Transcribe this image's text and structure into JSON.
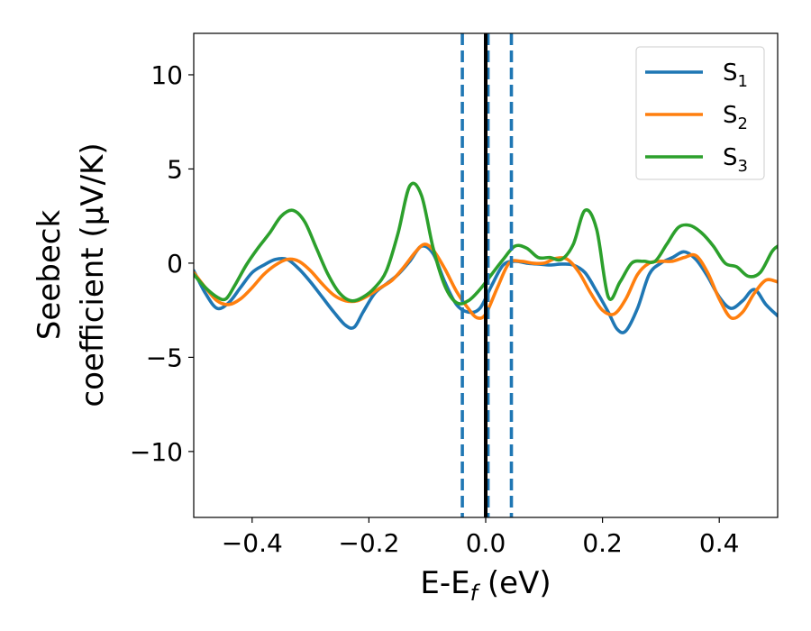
{
  "chart_data": {
    "type": "line",
    "xlabel": "E-E",
    "xlabel_sub": "f",
    "xlabel_unit": " (eV)",
    "ylabel_line1": "Seebeck",
    "ylabel_line2": "coefficient  (μV/K)",
    "xlim": [
      -0.5,
      0.5
    ],
    "ylim": [
      -13.5,
      12.2
    ],
    "xticks": [
      -0.4,
      -0.2,
      0.0,
      0.2,
      0.4
    ],
    "xtick_labels": [
      "−0.4",
      "−0.2",
      "0.0",
      "0.2",
      "0.4"
    ],
    "yticks": [
      10,
      5,
      0,
      -5,
      -10
    ],
    "ytick_labels": [
      "10",
      "5",
      "0",
      "−5",
      "−10"
    ],
    "grid": false,
    "legend_position": "top-right",
    "vertical_lines": [
      {
        "x": -0.04,
        "style": "dashed",
        "color": "#1f77b4"
      },
      {
        "x": 0.004,
        "style": "dashed",
        "color": "#1f77b4"
      },
      {
        "x": 0.044,
        "style": "dashed",
        "color": "#1f77b4"
      },
      {
        "x": 0.0,
        "style": "solid",
        "color": "#000000"
      }
    ],
    "series": [
      {
        "name": "S",
        "sub": "1",
        "color": "#1f77b4",
        "x": [
          -0.5,
          -0.48,
          -0.46,
          -0.44,
          -0.42,
          -0.4,
          -0.38,
          -0.36,
          -0.34,
          -0.32,
          -0.3,
          -0.28,
          -0.26,
          -0.24,
          -0.225,
          -0.21,
          -0.19,
          -0.17,
          -0.15,
          -0.13,
          -0.11,
          -0.09,
          -0.07,
          -0.05,
          -0.03,
          -0.01,
          0.01,
          0.03,
          0.05,
          0.07,
          0.09,
          0.11,
          0.13,
          0.15,
          0.17,
          0.19,
          0.21,
          0.225,
          0.24,
          0.26,
          0.28,
          0.3,
          0.32,
          0.34,
          0.36,
          0.38,
          0.4,
          0.42,
          0.44,
          0.46,
          0.48,
          0.5
        ],
        "y": [
          -0.4,
          -1.6,
          -2.4,
          -2.1,
          -1.3,
          -0.5,
          -0.1,
          0.2,
          0.2,
          -0.3,
          -1.0,
          -1.8,
          -2.6,
          -3.3,
          -3.4,
          -2.6,
          -1.6,
          -1.1,
          -0.6,
          0.1,
          0.9,
          0.5,
          -1.0,
          -2.2,
          -2.6,
          -2.4,
          -1.2,
          -0.1,
          0.1,
          0.0,
          -0.05,
          -0.1,
          -0.05,
          -0.1,
          -0.5,
          -1.5,
          -2.6,
          -3.5,
          -3.6,
          -2.4,
          -0.6,
          0.0,
          0.3,
          0.6,
          0.2,
          -0.7,
          -1.8,
          -2.4,
          -2.0,
          -1.4,
          -2.2,
          -2.8
        ]
      },
      {
        "name": "S",
        "sub": "2",
        "color": "#ff7f0e",
        "x": [
          -0.5,
          -0.48,
          -0.46,
          -0.44,
          -0.42,
          -0.4,
          -0.38,
          -0.36,
          -0.34,
          -0.32,
          -0.3,
          -0.28,
          -0.26,
          -0.24,
          -0.22,
          -0.2,
          -0.18,
          -0.16,
          -0.14,
          -0.12,
          -0.105,
          -0.09,
          -0.07,
          -0.05,
          -0.03,
          -0.015,
          0.0,
          0.02,
          0.04,
          0.06,
          0.08,
          0.1,
          0.12,
          0.14,
          0.16,
          0.18,
          0.2,
          0.22,
          0.24,
          0.26,
          0.28,
          0.3,
          0.32,
          0.34,
          0.36,
          0.38,
          0.4,
          0.42,
          0.44,
          0.46,
          0.48,
          0.5
        ],
        "y": [
          -0.5,
          -1.3,
          -2.0,
          -2.2,
          -1.9,
          -1.3,
          -0.6,
          -0.1,
          0.2,
          0.1,
          -0.4,
          -1.1,
          -1.7,
          -2.0,
          -2.0,
          -1.7,
          -1.3,
          -0.9,
          -0.2,
          0.6,
          1.0,
          0.7,
          -0.3,
          -1.5,
          -2.4,
          -2.9,
          -2.7,
          -1.3,
          0.0,
          0.1,
          0.0,
          0.0,
          0.25,
          0.2,
          -0.5,
          -1.6,
          -2.5,
          -2.7,
          -1.9,
          -0.6,
          0.0,
          0.1,
          0.1,
          0.3,
          0.4,
          -0.5,
          -1.9,
          -2.9,
          -2.6,
          -1.6,
          -0.9,
          -1.0
        ]
      },
      {
        "name": "S",
        "sub": "3",
        "color": "#2ca02c",
        "x": [
          -0.5,
          -0.48,
          -0.46,
          -0.445,
          -0.43,
          -0.41,
          -0.39,
          -0.37,
          -0.35,
          -0.33,
          -0.31,
          -0.29,
          -0.27,
          -0.25,
          -0.23,
          -0.21,
          -0.19,
          -0.17,
          -0.15,
          -0.13,
          -0.11,
          -0.09,
          -0.07,
          -0.05,
          -0.03,
          -0.01,
          0.01,
          0.03,
          0.05,
          0.07,
          0.09,
          0.11,
          0.13,
          0.15,
          0.17,
          0.19,
          0.21,
          0.23,
          0.25,
          0.27,
          0.29,
          0.31,
          0.33,
          0.35,
          0.37,
          0.39,
          0.41,
          0.43,
          0.45,
          0.47,
          0.49,
          0.5
        ],
        "y": [
          -0.6,
          -1.3,
          -1.8,
          -1.9,
          -1.2,
          -0.1,
          0.8,
          1.6,
          2.5,
          2.8,
          2.2,
          0.8,
          -0.6,
          -1.6,
          -2.0,
          -1.8,
          -1.3,
          -0.4,
          1.6,
          4.1,
          3.6,
          0.8,
          -1.2,
          -2.1,
          -2.0,
          -1.4,
          -0.6,
          0.2,
          0.9,
          0.8,
          0.3,
          0.3,
          0.2,
          1.0,
          2.8,
          1.8,
          -1.8,
          -1.0,
          0.0,
          0.1,
          0.1,
          1.0,
          1.9,
          2.0,
          1.6,
          0.9,
          0.0,
          -0.2,
          -0.7,
          -0.5,
          0.6,
          0.9
        ]
      }
    ]
  }
}
